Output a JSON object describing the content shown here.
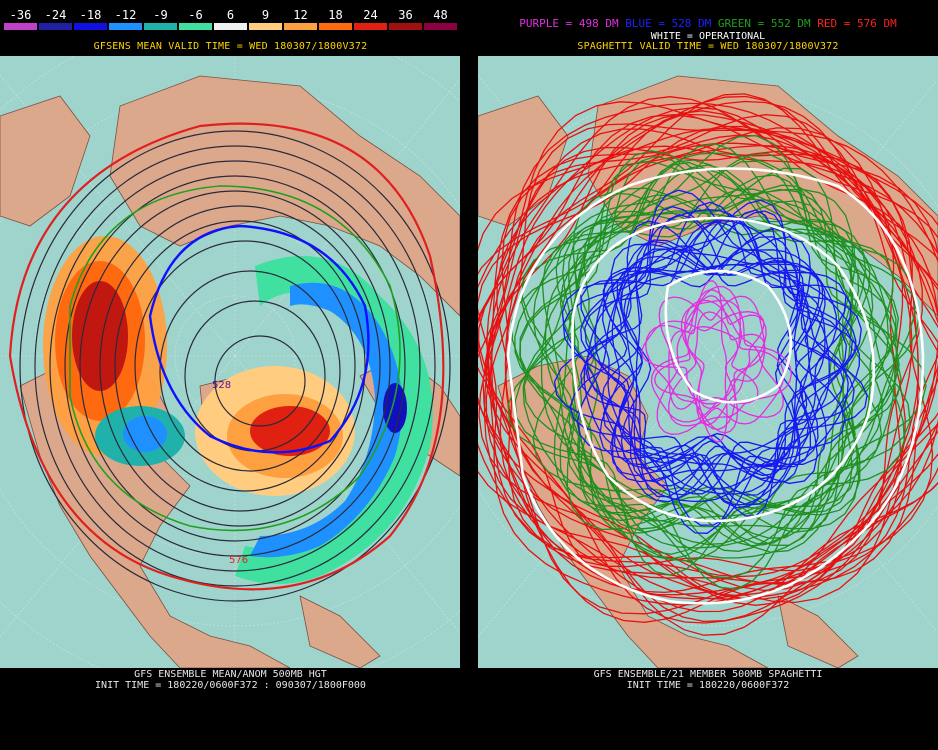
{
  "left": {
    "colorbar": {
      "labels": [
        "-36",
        "-24",
        "-18",
        "-12",
        "-9",
        "-6",
        "6",
        "9",
        "12",
        "18",
        "24",
        "36",
        "48"
      ],
      "colors": [
        "#c040c8",
        "#2020a0",
        "#1010e0",
        "#1e90ff",
        "#20b2aa",
        "#40e0a0",
        "#f0f0f0",
        "#ffcc80",
        "#ffa040",
        "#ff6a10",
        "#e02010",
        "#a01010",
        "#8b0040"
      ]
    },
    "subtitle": "GFSENS MEAN VALID TIME = WED 180307/1800V372",
    "contour_label_1": "528",
    "contour_label_2": "576",
    "footer_line1": "GFS ENSEMBLE MEAN/ANOM 500MB HGT",
    "footer_line2": "INIT TIME = 180220/0600F372 : 090307/1800F000"
  },
  "right": {
    "legend": {
      "purple": "PURPLE = 498 DM",
      "blue": "BLUE = 528 DM",
      "green": "GREEN = 552 DM",
      "red": "RED = 576 DM"
    },
    "white_label": "WHITE = OPERATIONAL",
    "subtitle": "SPAGHETTI VALID TIME = WED 180307/1800V372",
    "footer_line1": "GFS ENSEMBLE/21 MEMBER 500MB SPAGHETTI",
    "footer_line2": "INIT TIME = 180220/0600F372"
  },
  "style": {
    "ocean": "#9fd4cc",
    "land": "#dca88c",
    "legend_purple": "#e030e0",
    "legend_blue": "#2020ff",
    "legend_green": "#20a020",
    "legend_red": "#ff2020",
    "subtitle_yellow": "#ffd400"
  }
}
